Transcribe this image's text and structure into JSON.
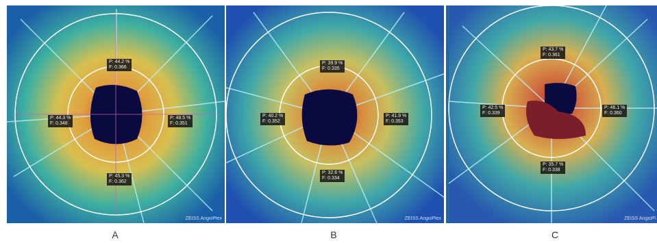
{
  "panels": [
    {
      "id": "a",
      "letter": "A",
      "brand": "ZEISS AngioPlex",
      "measurements": {
        "top": {
          "p": "P: 44.2 %",
          "f": "F: 0.366"
        },
        "left": {
          "p": "P: 44.3 %",
          "f": "F: 0.348"
        },
        "right": {
          "p": "P: 48.5 %",
          "f": "F: 0.351"
        },
        "bottom": {
          "p": "P: 45.3 %",
          "f": "F: 0.362"
        }
      }
    },
    {
      "id": "b",
      "letter": "B",
      "brand": "ZEISS AngioPlex",
      "measurements": {
        "top": {
          "p": "P: 39.9 %",
          "f": "F: 0.335"
        },
        "left": {
          "p": "P: 40.2 %",
          "f": "F: 0.352"
        },
        "right": {
          "p": "P: 41.9 %",
          "f": "F: 0.353"
        },
        "bottom": {
          "p": "P: 32.6 %",
          "f": "F: 0.334"
        }
      }
    },
    {
      "id": "c",
      "letter": "C",
      "brand": "ZEISS AngioPl",
      "measurements": {
        "top": {
          "p": "P: 43.7 %",
          "f": "F: 0.361"
        },
        "left": {
          "p": "P: 42.5 %",
          "f": "F: 0.339"
        },
        "right": {
          "p": "P: 46.1 %",
          "f": "F: 0.360"
        },
        "bottom": {
          "p": "P: 35.7 %",
          "f": "F: 0.338"
        }
      }
    }
  ],
  "colors": {
    "background": "#ffffff",
    "heatmap_low": "#1b5fa8",
    "heatmap_mid": "#3fb0a0",
    "heatmap_high": "#e0c040",
    "heatmap_peak": "#c8443a",
    "disc": "#0a0a40",
    "ring": "#ffffff"
  }
}
